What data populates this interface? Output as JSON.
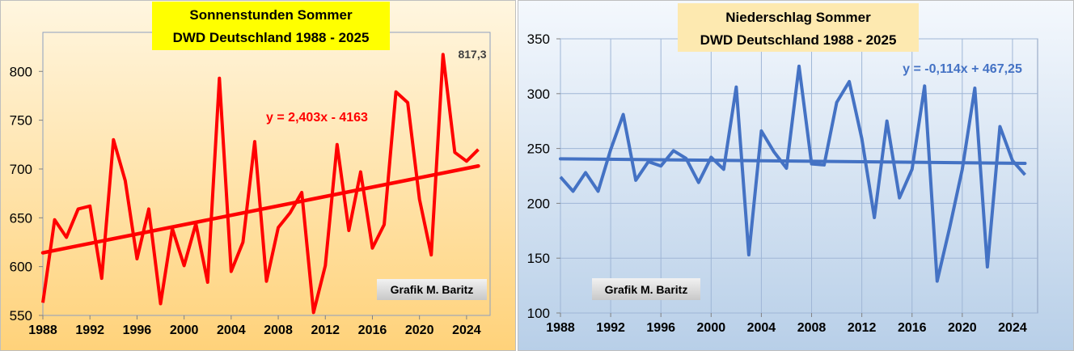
{
  "charts": [
    {
      "chart_data": {
        "type": "line",
        "title": "Sonnenstunden Sommer",
        "subtitle": "DWD Deutschland 1988 - 2025",
        "x": [
          1988,
          1989,
          1990,
          1991,
          1992,
          1993,
          1994,
          1995,
          1996,
          1997,
          1998,
          1999,
          2000,
          2001,
          2002,
          2003,
          2004,
          2005,
          2006,
          2007,
          2008,
          2009,
          2010,
          2011,
          2012,
          2013,
          2014,
          2015,
          2016,
          2017,
          2018,
          2019,
          2020,
          2021,
          2022,
          2023,
          2024,
          2025
        ],
        "series": [
          {
            "name": "",
            "color": "#ff0000",
            "values": [
              563,
              648,
              630,
              659,
              662,
              588,
              730,
              688,
              608,
              659,
              562,
              639,
              601,
              644,
              584,
              793,
              595,
              625,
              728,
              585,
              640,
              655,
              676,
              553,
              601,
              725,
              637,
              697,
              619,
              643,
              779,
              768,
              669,
              612,
              817.3,
              717,
              708,
              720
            ]
          }
        ],
        "trendline": {
          "slope": 2.403,
          "intercept": -4163,
          "label": "y = 2,403x - 4163",
          "color": "#ff0000"
        },
        "last_peak_label": "817,3",
        "credit": "Grafik M. Baritz",
        "xlim": [
          1988,
          2026
        ],
        "ylim": [
          550,
          840
        ],
        "x_ticks": [
          1988,
          1992,
          1996,
          2000,
          2004,
          2008,
          2012,
          2016,
          2020,
          2024
        ],
        "y_ticks": [
          550,
          600,
          650,
          700,
          750,
          800
        ],
        "background": [
          "#fff6e0",
          "#ffd27a"
        ],
        "title_bg": "#ffff00",
        "grid": false
      }
    },
    {
      "chart_data": {
        "type": "line",
        "title": "Niederschlag Sommer",
        "subtitle": "DWD Deutschland 1988 - 2025",
        "x": [
          1988,
          1989,
          1990,
          1991,
          1992,
          1993,
          1994,
          1995,
          1996,
          1997,
          1998,
          1999,
          2000,
          2001,
          2002,
          2003,
          2004,
          2005,
          2006,
          2007,
          2008,
          2009,
          2010,
          2011,
          2012,
          2013,
          2014,
          2015,
          2016,
          2017,
          2018,
          2019,
          2020,
          2021,
          2022,
          2023,
          2024,
          2025
        ],
        "series": [
          {
            "name": "",
            "color": "#4472c4",
            "values": [
              224,
              211,
              228,
              211,
              249,
              281,
              221,
              238,
              234,
              248,
              241,
              219,
              242,
              231,
              306,
              153,
              266,
              247,
              232,
              325,
              236,
              235,
              292,
              311,
              259,
              187,
              275,
              205,
              231,
              307,
              129,
              178,
              231,
              305,
              142,
              270,
              239,
              226
            ]
          }
        ],
        "trendline": {
          "slope": -0.114,
          "intercept": 467.25,
          "label": "y = -0,114x + 467,25",
          "color": "#4472c4"
        },
        "credit": "Grafik M. Baritz",
        "xlim": [
          1988,
          2026
        ],
        "ylim": [
          100,
          350
        ],
        "x_ticks": [
          1988,
          1992,
          1996,
          2000,
          2004,
          2008,
          2012,
          2016,
          2020,
          2024
        ],
        "y_ticks": [
          100,
          150,
          200,
          250,
          300,
          350
        ],
        "background": [
          "#f4f8fd",
          "#b8cfe8"
        ],
        "title_bg": "#fde9b0",
        "grid": true
      }
    }
  ]
}
